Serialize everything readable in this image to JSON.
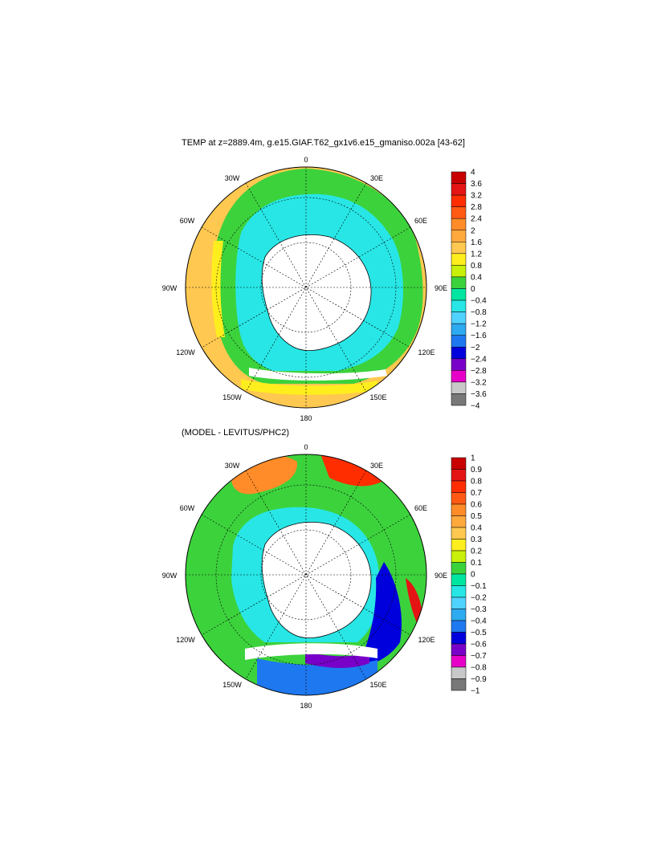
{
  "top_panel": {
    "title": "TEMP at z=2889.4m, g.e15.GIAF.T62_gx1v6.e15_gmaniso.002a [43-62]",
    "longitude_labels": [
      "0",
      "30E",
      "60E",
      "90E",
      "120E",
      "150E",
      "180",
      "150W",
      "120W",
      "90W",
      "60W",
      "30W"
    ],
    "colorbar": {
      "labels": [
        "4",
        "3.6",
        "3.2",
        "2.8",
        "2.4",
        "2",
        "1.6",
        "1.2",
        "0.8",
        "0.4",
        "0",
        "−0.4",
        "−0.8",
        "−1.2",
        "−1.6",
        "−2",
        "−2.4",
        "−2.8",
        "−3.2",
        "−3.6",
        "−4"
      ],
      "colors": [
        "#c80000",
        "#e41414",
        "#ff2d00",
        "#ff5a14",
        "#ff8c28",
        "#ffa83c",
        "#ffc850",
        "#ffee1e",
        "#c8f00a",
        "#3cd23c",
        "#00e6a0",
        "#28e6e6",
        "#50d2ff",
        "#2daaf0",
        "#1e78f0",
        "#0000dc",
        "#7800c8",
        "#e600c8",
        "#c8c8c8",
        "#787878"
      ]
    }
  },
  "bottom_panel": {
    "title": "(MODEL - LEVITUS/PHC2)",
    "longitude_labels": [
      "0",
      "30E",
      "60E",
      "90E",
      "120E",
      "150E",
      "180",
      "150W",
      "120W",
      "90W",
      "60W",
      "30W"
    ],
    "colorbar": {
      "labels": [
        "1",
        "0.9",
        "0.8",
        "0.7",
        "0.6",
        "0.5",
        "0.4",
        "0.3",
        "0.2",
        "0.1",
        "0",
        "−0.1",
        "−0.2",
        "−0.3",
        "−0.4",
        "−0.5",
        "−0.6",
        "−0.7",
        "−0.8",
        "−0.9",
        "−1"
      ],
      "colors": [
        "#c80000",
        "#e41414",
        "#ff2d00",
        "#ff5a14",
        "#ff8c28",
        "#ffa83c",
        "#ffc850",
        "#ffee1e",
        "#c8f00a",
        "#3cd23c",
        "#00e6a0",
        "#28e6e6",
        "#50d2ff",
        "#2daaf0",
        "#1e78f0",
        "#0000dc",
        "#7800c8",
        "#e600c8",
        "#c8c8c8",
        "#787878"
      ]
    }
  },
  "colors": {
    "land": "#ffffff",
    "outline": "#000000"
  }
}
